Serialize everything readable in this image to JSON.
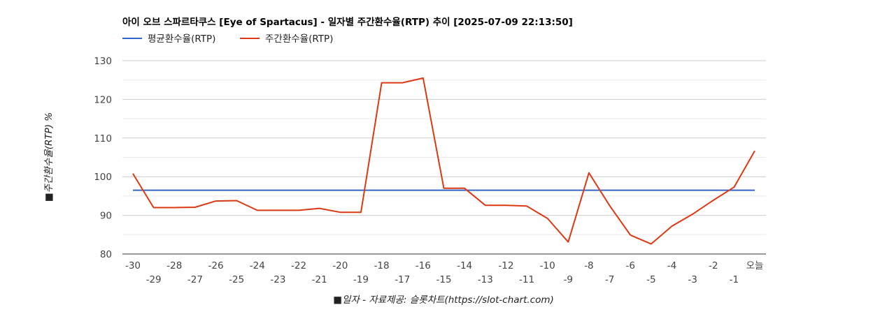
{
  "chart_data": {
    "type": "line",
    "title": "아이 오브 스파르타쿠스 [Eye of Spartacus] - 일자별 주간환수율(RTP) 추이 [2025-07-09 22:13:50]",
    "xlabel": "■일자 - 자료제공: 슬롯차트(https://slot-chart.com)",
    "ylabel": "■주간환수율(RTP) %",
    "ylim": [
      80,
      130
    ],
    "yticks": [
      "80",
      "90",
      "100",
      "110",
      "120",
      "130"
    ],
    "grid": true,
    "legend_position": "top-left",
    "categories": [
      "-30",
      "-29",
      "-28",
      "-27",
      "-26",
      "-25",
      "-24",
      "-23",
      "-22",
      "-21",
      "-20",
      "-19",
      "-18",
      "-17",
      "-16",
      "-15",
      "-14",
      "-13",
      "-12",
      "-11",
      "-10",
      "-9",
      "-8",
      "-7",
      "-6",
      "-5",
      "-4",
      "-3",
      "-2",
      "-1",
      "오늘"
    ],
    "series": [
      {
        "name": "평균환수율(RTP)",
        "color": "#3366cc",
        "values": [
          96.5,
          96.5,
          96.5,
          96.5,
          96.5,
          96.5,
          96.5,
          96.5,
          96.5,
          96.5,
          96.5,
          96.5,
          96.5,
          96.5,
          96.5,
          96.5,
          96.5,
          96.5,
          96.5,
          96.5,
          96.5,
          96.5,
          96.5,
          96.5,
          96.5,
          96.5,
          96.5,
          96.5,
          96.5,
          96.5,
          96.5
        ]
      },
      {
        "name": "주간환수율(RTP)",
        "color": "#dc3912",
        "values": [
          100.8,
          92.0,
          92.0,
          92.1,
          93.7,
          93.8,
          91.3,
          91.3,
          91.3,
          91.8,
          90.8,
          90.8,
          124.3,
          124.3,
          125.5,
          97.0,
          97.0,
          92.6,
          92.6,
          92.4,
          89.2,
          83.1,
          101.0,
          92.5,
          84.9,
          82.6,
          87.2,
          90.3,
          93.9,
          97.3,
          106.7
        ]
      }
    ]
  }
}
